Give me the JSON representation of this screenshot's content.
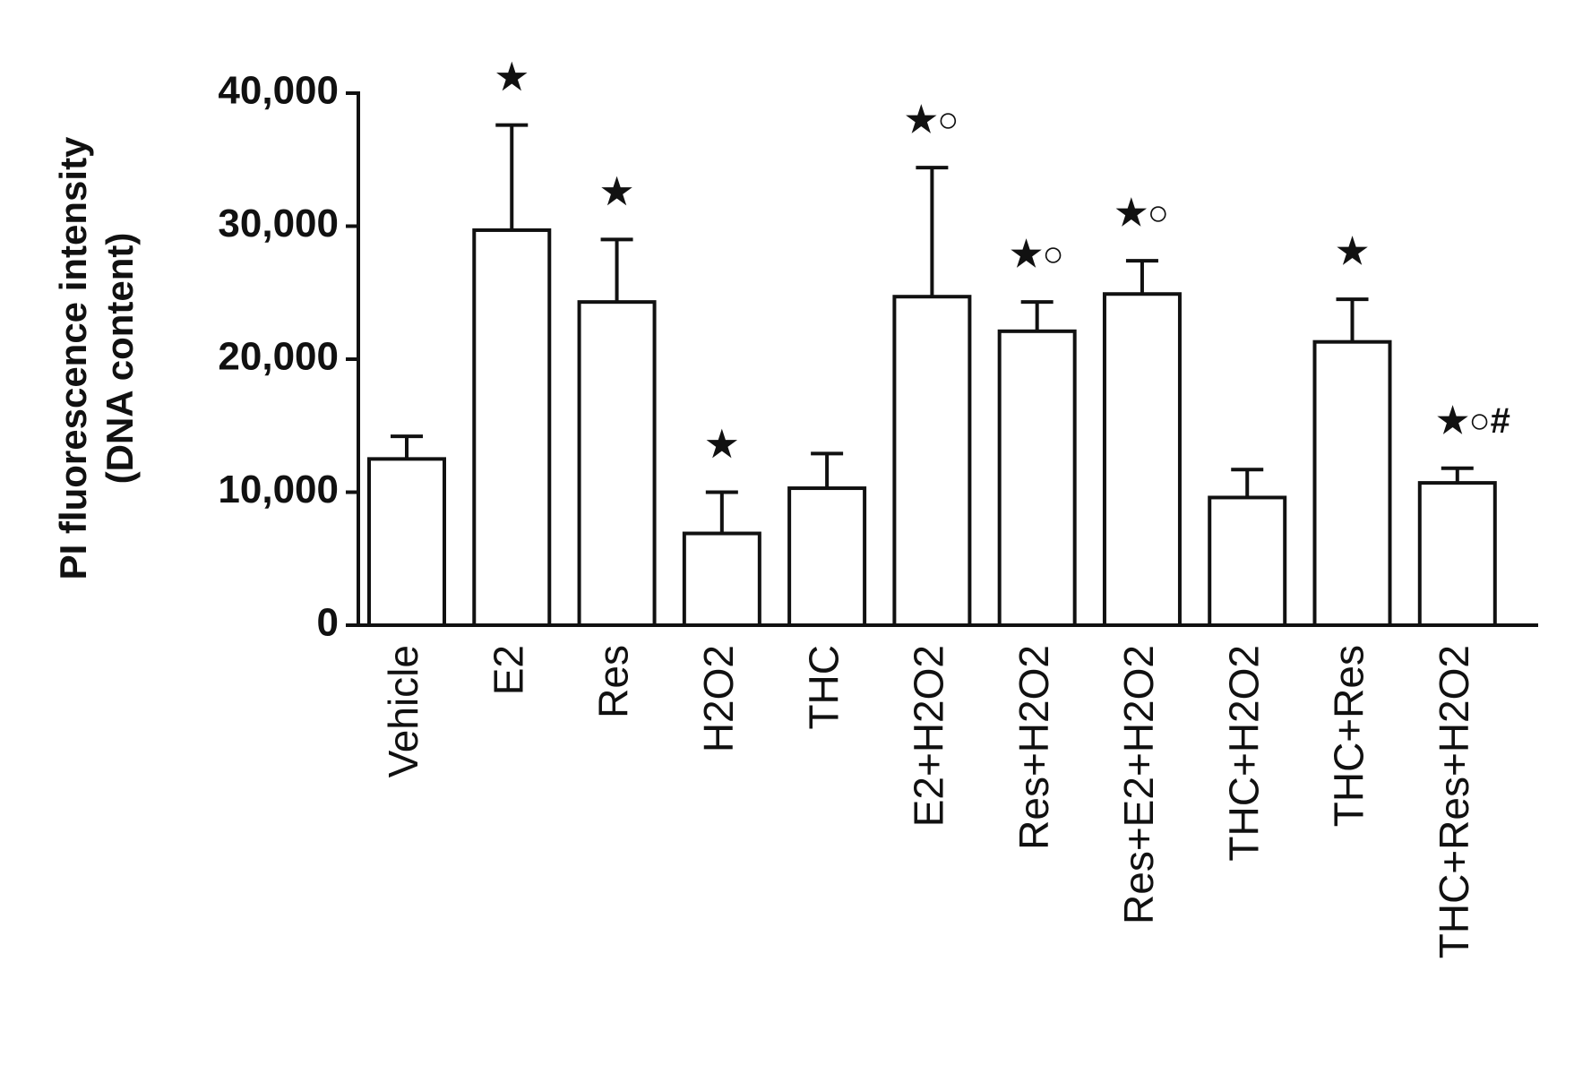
{
  "chart_data": {
    "type": "bar",
    "ylabel": [
      "PI fluorescence intensity",
      "(DNA content)"
    ],
    "categories": [
      "Vehicle",
      "E2",
      "Res",
      "H2O2",
      "THC",
      "E2+H2O2",
      "Res+H2O2",
      "Res+E2+H2O2",
      "THC+H2O2",
      "THC+Res",
      "THC+Res+H2O2"
    ],
    "values": [
      12500,
      29700,
      24300,
      6900,
      10300,
      24700,
      22100,
      24900,
      9600,
      21300,
      10700
    ],
    "errors": [
      1700,
      7900,
      4700,
      3100,
      2600,
      9700,
      2200,
      2500,
      2100,
      3200,
      1100
    ],
    "annotations": [
      null,
      "★",
      "★",
      "★",
      null,
      "★○",
      "★○",
      "★○",
      null,
      "★",
      "★○#"
    ],
    "color": "#ffffff",
    "ylim": [
      0,
      40000
    ],
    "yticks": [
      0,
      {
        "value": 10000,
        "label": "10,000"
      },
      {
        "value": 20000,
        "label": "20,000"
      },
      {
        "value": 30000,
        "label": "30,000"
      },
      {
        "value": 40000,
        "label": "40,000"
      }
    ]
  }
}
